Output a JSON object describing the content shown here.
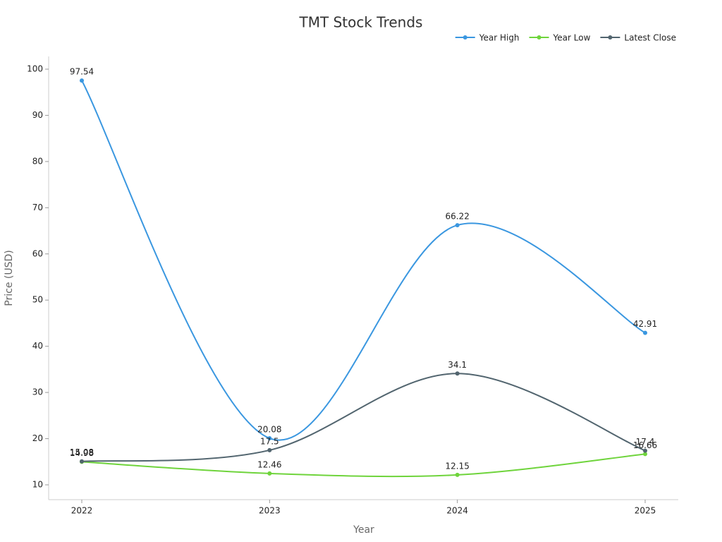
{
  "chart_data": {
    "type": "line",
    "title": "TMT Stock Trends",
    "x_label": "Year",
    "y_label": "Price (USD)",
    "categories": [
      "2022",
      "2023",
      "2024",
      "2025"
    ],
    "series": [
      {
        "name": "Year High",
        "color": "#3a97e0",
        "values": [
          97.54,
          20.08,
          66.22,
          42.91
        ]
      },
      {
        "name": "Year Low",
        "color": "#6fd43c",
        "values": [
          14.98,
          12.46,
          12.15,
          16.66
        ]
      },
      {
        "name": "Latest Close",
        "color": "#52656f",
        "values": [
          15.08,
          17.5,
          34.1,
          17.4
        ]
      }
    ],
    "ylim": [
      6.79,
      102.75
    ],
    "yticks": [
      10,
      20,
      30,
      40,
      50,
      60,
      70,
      80,
      90,
      100
    ],
    "legend": "top-right"
  }
}
